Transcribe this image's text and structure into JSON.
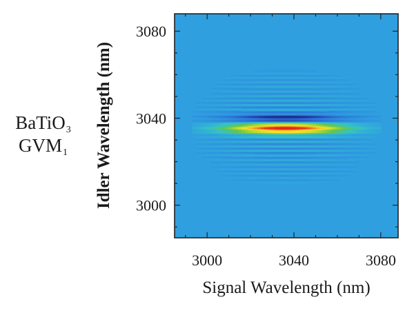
{
  "material_label": {
    "base": "BaTiO",
    "sub": "3"
  },
  "gvm_label": {
    "base": "GVM",
    "sub": "1"
  },
  "chart_data": {
    "type": "heatmap",
    "title": "",
    "xlabel": "Signal Wavelength (nm)",
    "ylabel": "Idler Wavelength (nm)",
    "xlim": [
      2985,
      3088
    ],
    "ylim": [
      2985,
      3088
    ],
    "x_ticks": [
      3000,
      3040,
      3080
    ],
    "y_ticks": [
      3000,
      3040,
      3080
    ],
    "x_tick_labels": [
      "3000",
      "3040",
      "3080"
    ],
    "y_tick_labels": [
      "3000",
      "3040",
      "3080"
    ],
    "colormap": [
      "#1f2a8a",
      "#2b6fd6",
      "#2f9fe0",
      "#35c3c8",
      "#5fc552",
      "#b8d832",
      "#f3e52b",
      "#f79a1e",
      "#e2261c"
    ],
    "background_color": "#2f9fe0",
    "peak": {
      "signal_center": 3036,
      "idler_center": 3035.5,
      "signal_halfwidth": 30,
      "idler_halfwidth": 1.8,
      "fringe_period_idler": 2.1,
      "fringe_halfwidth_signal": 22,
      "fringe_halfwidth_idler": 15
    }
  }
}
